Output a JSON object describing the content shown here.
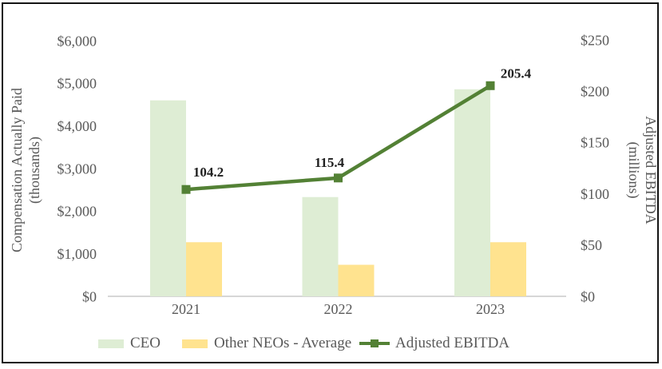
{
  "chart_data": {
    "type": "combo-bar-line",
    "title": "",
    "categories": [
      "2021",
      "2022",
      "2023"
    ],
    "bar_series": [
      {
        "name": "CEO",
        "color": "#deedd4",
        "values": [
          4600,
          2330,
          4860
        ]
      },
      {
        "name": "Other NEOs - Average",
        "color": "#ffe38f",
        "values": [
          1270,
          740,
          1270
        ]
      }
    ],
    "line_series": {
      "name": "Adjusted EBITDA",
      "color": "#538135",
      "values": [
        104.2,
        115.4,
        205.4
      ],
      "data_labels": [
        "104.2",
        "115.4",
        "205.4"
      ]
    },
    "left_axis": {
      "title_line1": "Compensation Actually Paid",
      "title_line2": "(thousands)",
      "min": 0,
      "max": 6000,
      "step": 1000,
      "tick_labels": [
        "$0",
        "$1,000",
        "$2,000",
        "$3,000",
        "$4,000",
        "$5,000",
        "$6,000"
      ]
    },
    "right_axis": {
      "title_line1": "Adjusted EBITDA",
      "title_line2": "(millions)",
      "min": 0,
      "max": 250,
      "step": 50,
      "tick_labels": [
        "$0",
        "$50",
        "$100",
        "$150",
        "$200",
        "$250"
      ]
    },
    "legend_position": "bottom",
    "grid": false,
    "colors": {
      "text": "#595959",
      "data_label": "#1f1f1f",
      "axis_line": "#d6d6d6",
      "frame_border": "#141414"
    }
  }
}
